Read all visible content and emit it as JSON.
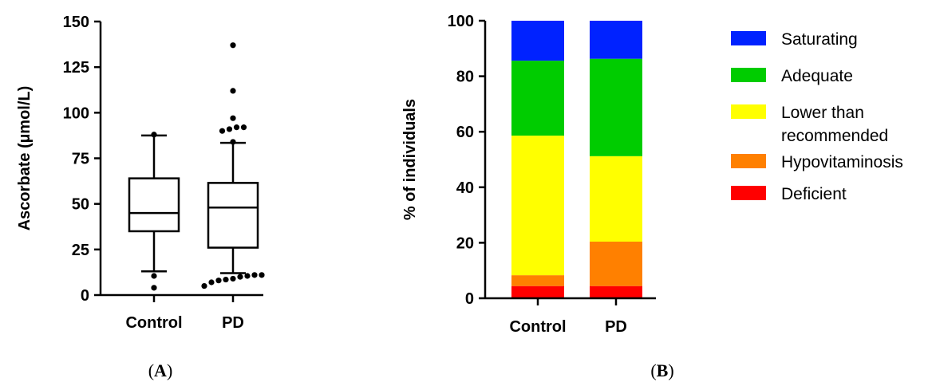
{
  "chart_data": [
    {
      "type": "box",
      "panel_label": "A",
      "ylabel": "Ascorbate (µmol/L)",
      "ylim": [
        0,
        150
      ],
      "yticks": [
        0,
        25,
        50,
        75,
        100,
        125,
        150
      ],
      "categories": [
        "Control",
        "PD"
      ],
      "boxes": [
        {
          "category": "Control",
          "whisker_low": 13,
          "q1": 35,
          "median": 45,
          "q3": 64,
          "whisker_high": 87.5,
          "outliers": [
            4,
            10.5,
            88
          ]
        },
        {
          "category": "PD",
          "whisker_low": 12,
          "q1": 26,
          "median": 48,
          "q3": 61.5,
          "whisker_high": 83.5,
          "outliers": [
            5,
            7,
            8,
            8.5,
            9,
            10,
            10.5,
            11,
            11,
            84,
            90,
            91,
            92,
            92,
            97,
            112,
            137
          ]
        }
      ]
    },
    {
      "type": "stacked-bar",
      "panel_label": "B",
      "ylabel": "% of individuals",
      "ylim": [
        0,
        100
      ],
      "yticks": [
        0,
        20,
        40,
        60,
        80,
        100
      ],
      "categories": [
        "Control",
        "PD"
      ],
      "legend_position": "right",
      "series": [
        {
          "name": "Deficient",
          "color": "#ff0000",
          "values": [
            4.4,
            4.4
          ]
        },
        {
          "name": "Hypovitaminosis",
          "color": "#ff8000",
          "values": [
            3.9,
            16.0
          ]
        },
        {
          "name": "Lower than recommended",
          "color": "#ffff00",
          "values": [
            50.3,
            30.8
          ]
        },
        {
          "name": "Adequate",
          "color": "#00cc00",
          "values": [
            27.0,
            35.1
          ]
        },
        {
          "name": "Saturating",
          "color": "#0022ff",
          "values": [
            14.4,
            13.7
          ]
        }
      ],
      "legend": [
        {
          "name": "Saturating",
          "color": "#0022ff",
          "lines": [
            "Saturating"
          ]
        },
        {
          "name": "Adequate",
          "color": "#00cc00",
          "lines": [
            "Adequate"
          ]
        },
        {
          "name": "Lower than recommended",
          "color": "#ffff00",
          "lines": [
            "Lower than",
            "recommended"
          ]
        },
        {
          "name": "Hypovitaminosis",
          "color": "#ff8000",
          "lines": [
            "Hypovitaminosis"
          ]
        },
        {
          "name": "Deficient",
          "color": "#ff0000",
          "lines": [
            "Deficient"
          ]
        }
      ]
    }
  ]
}
